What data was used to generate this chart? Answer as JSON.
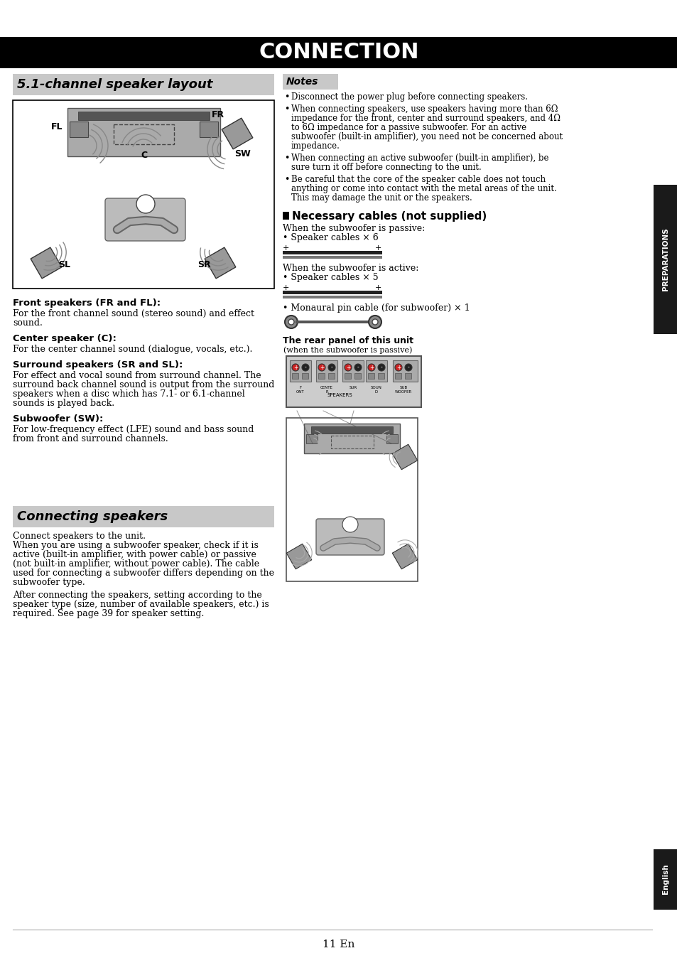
{
  "title": "CONNECTION",
  "section1_title": "5.1-channel speaker layout",
  "section2_title": "Connecting speakers",
  "notes_title": "Notes",
  "notes_items": [
    "Disconnect the power plug before connecting speakers.",
    "When connecting speakers, use speakers having more than 6Ω impedance for the front, center and surround speakers, and 4Ω to 6Ω impedance for a passive subwoofer. For an active subwoofer (built-in amplifier), you need not be concerned about impedance.",
    "When connecting an active subwoofer (built-in amplifier), be sure turn it off before connecting to the unit.",
    "Be careful that the core of the speaker cable does not touch anything or come into contact with the metal areas of the unit. This may damage the unit or the speakers."
  ],
  "cables_title": "Necessary cables (not supplied)",
  "passive_label": "When the subwoofer is passive:",
  "passive_cables": "Speaker cables × 6",
  "active_label": "When the subwoofer is active:",
  "active_cables": "Speaker cables × 5",
  "mono_cable": "Monaural pin cable (for subwoofer) × 1",
  "rear_panel_label": "The rear panel of this unit",
  "rear_panel_sub": "(when the subwoofer is passive)",
  "front_speakers_title": "Front speakers (FR and FL):",
  "center_speaker_title": "Center speaker (C):",
  "surround_speakers_title": "Surround speakers (SR and SL):",
  "subwoofer_title": "Subwoofer (SW):",
  "connecting_text1": "Connect speakers to the unit.",
  "preparations_label": "PREPARATIONS",
  "english_label": "English",
  "page_number": "11",
  "page_suffix": "En",
  "bg_color": "#ffffff",
  "title_bg": "#000000",
  "title_fg": "#ffffff",
  "section_bg": "#c8c8c8",
  "notes_bg": "#c8c8c8",
  "sidebar_bg": "#1a1a1a",
  "sidebar_fg": "#ffffff",
  "notes_items_wrapped": [
    [
      "Disconnect the power plug before connecting speakers."
    ],
    [
      "When connecting speakers, use speakers having more than 6Ω",
      "impedance for the front, center and surround speakers, and 4Ω",
      "to 6Ω impedance for a passive subwoofer. For an active",
      "subwoofer (built-in amplifier), you need not be concerned about",
      "impedance."
    ],
    [
      "When connecting an active subwoofer (built-in amplifier), be",
      "sure turn it off before connecting to the unit."
    ],
    [
      "Be careful that the core of the speaker cable does not touch",
      "anything or come into contact with the metal areas of the unit.",
      "This may damage the unit or the speakers."
    ]
  ]
}
